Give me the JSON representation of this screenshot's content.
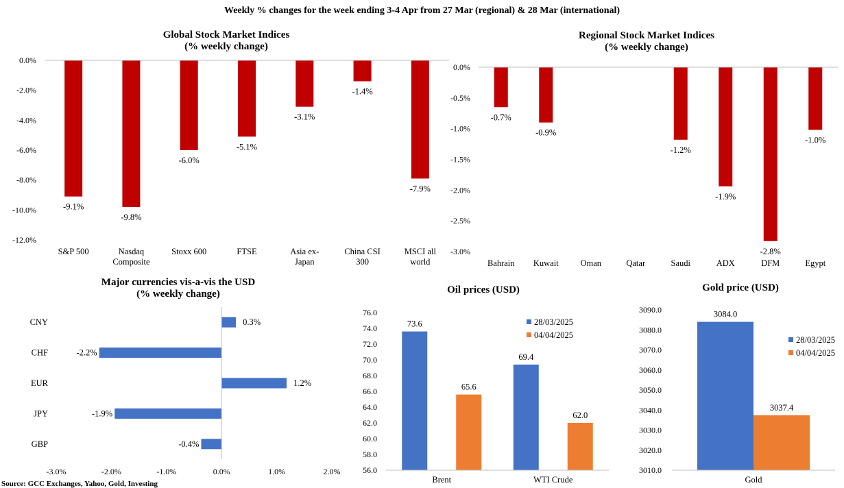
{
  "page_title": "Weekly % changes for the week ending 3-4 Apr from 27 Mar (regional) & 28 Mar (international)",
  "source": "Source: GCC Exchanges, Yahoo, Gold, Investing",
  "colors": {
    "red": "#C00000",
    "blue": "#4472C4",
    "orange": "#ED7D31",
    "axis": "#BFBFBF"
  },
  "chart_data": [
    {
      "id": "global",
      "type": "bar",
      "title": [
        "Global Stock Market Indices",
        "(% weekly change)"
      ],
      "categories": [
        [
          "S&P 500"
        ],
        [
          "Nasdaq",
          "Composite"
        ],
        [
          "Stoxx 600"
        ],
        [
          "FTSE"
        ],
        [
          "Asia ex-",
          "Japan"
        ],
        [
          "China CSI",
          "300"
        ],
        [
          "MSCI all",
          "world"
        ]
      ],
      "values": [
        -9.1,
        -9.8,
        -6.0,
        -5.1,
        -3.1,
        -1.4,
        -7.9
      ],
      "value_labels": [
        "-9.1%",
        "-9.8%",
        "-6.0%",
        "-5.1%",
        "-3.1%",
        "-1.4%",
        "-7.9%"
      ],
      "ylim": [
        -12,
        0
      ],
      "yticks": [
        0,
        -2,
        -4,
        -6,
        -8,
        -10,
        -12
      ],
      "ytick_labels": [
        "0.0%",
        "-2.0%",
        "-4.0%",
        "-6.0%",
        "-8.0%",
        "-10.0%",
        "-12.0%"
      ],
      "color": "#C00000"
    },
    {
      "id": "regional",
      "type": "bar",
      "title": [
        "Regional Stock Market Indices",
        "(% weekly change)"
      ],
      "categories": [
        [
          "Bahrain"
        ],
        [
          "Kuwait"
        ],
        [
          "Oman"
        ],
        [
          "Qatar"
        ],
        [
          "Saudi"
        ],
        [
          "ADX"
        ],
        [
          "DFM"
        ],
        [
          "Egypt"
        ]
      ],
      "values": [
        -0.65,
        -0.9,
        0,
        0,
        -1.18,
        -1.94,
        -2.83,
        -1.02
      ],
      "value_labels": [
        "-0.7%",
        "-0.9%",
        "",
        "",
        "-1.2%",
        "-1.9%",
        "-2.8%",
        "-1.0%"
      ],
      "ylim": [
        -3,
        0
      ],
      "yticks": [
        0,
        -0.5,
        -1,
        -1.5,
        -2,
        -2.5,
        -3
      ],
      "ytick_labels": [
        "0.0%",
        "-0.5%",
        "-1.0%",
        "-1.5%",
        "-2.0%",
        "-2.5%",
        "-3.0%"
      ],
      "color": "#C00000"
    },
    {
      "id": "currencies",
      "type": "bar",
      "orientation": "horizontal",
      "title": [
        "Major currencies vis-a-vis the USD",
        "(% weekly change)"
      ],
      "categories": [
        "CNY",
        "CHF",
        "EUR",
        "JPY",
        "GBP"
      ],
      "values": [
        0.26,
        -2.22,
        1.18,
        -1.94,
        -0.37
      ],
      "value_labels": [
        "0.3%",
        "-2.2%",
        "1.2%",
        "-1.9%",
        "-0.4%"
      ],
      "xlim": [
        -3,
        2
      ],
      "xticks": [
        -3,
        -2,
        -1,
        0,
        1,
        2
      ],
      "xtick_labels": [
        "-3.0%",
        "-2.0%",
        "-1.0%",
        "0.0%",
        "1.0%",
        "2.0%"
      ],
      "color": "#4472C4"
    },
    {
      "id": "oil",
      "type": "bar",
      "title": [
        "Oil prices (USD)"
      ],
      "categories": [
        "Brent",
        "WTI Crude"
      ],
      "series": [
        {
          "name": "28/03/2025",
          "values": [
            73.6,
            69.4
          ],
          "labels": [
            "73.6",
            "69.4"
          ],
          "color": "#4472C4"
        },
        {
          "name": "04/04/2025",
          "values": [
            65.6,
            62.0
          ],
          "labels": [
            "65.6",
            "62.0"
          ],
          "color": "#ED7D31"
        }
      ],
      "ylim": [
        56,
        76
      ],
      "yticks": [
        56,
        58,
        60,
        62,
        64,
        66,
        68,
        70,
        72,
        74,
        76
      ],
      "ytick_labels": [
        "56.0",
        "58.0",
        "60.0",
        "62.0",
        "64.0",
        "66.0",
        "68.0",
        "70.0",
        "72.0",
        "74.0",
        "76.0"
      ],
      "legend": "right"
    },
    {
      "id": "gold",
      "type": "bar",
      "title": [
        "Gold price (USD)"
      ],
      "categories": [
        "Gold"
      ],
      "series": [
        {
          "name": "28/03/2025",
          "values": [
            3084.0
          ],
          "labels": [
            "3084.0"
          ],
          "color": "#4472C4"
        },
        {
          "name": "04/04/2025",
          "values": [
            3037.4
          ],
          "labels": [
            "3037.4"
          ],
          "color": "#ED7D31"
        }
      ],
      "ylim": [
        3010,
        3090
      ],
      "yticks": [
        3010,
        3020,
        3030,
        3040,
        3050,
        3060,
        3070,
        3080,
        3090
      ],
      "ytick_labels": [
        "3010.0",
        "3020.0",
        "3030.0",
        "3040.0",
        "3050.0",
        "3060.0",
        "3070.0",
        "3080.0",
        "3090.0"
      ],
      "legend": "right"
    }
  ]
}
